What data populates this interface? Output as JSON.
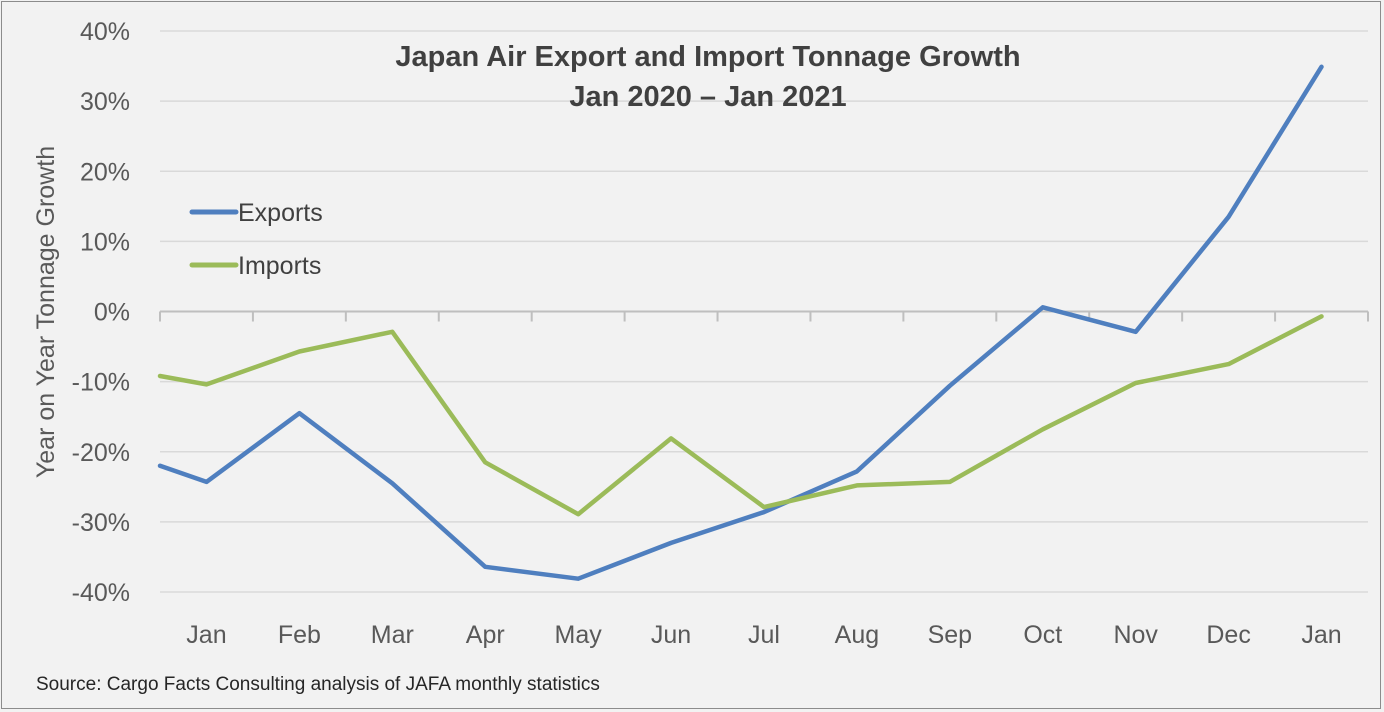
{
  "chart_data": {
    "type": "line",
    "title": "Japan Air Export and Import Tonnage Growth",
    "subtitle": "Jan 2020 – Jan 2021",
    "ylabel": "Year on Year Tonnage Growth",
    "xlabel": "",
    "ylim": [
      -40,
      40
    ],
    "yticks": [
      40,
      30,
      20,
      10,
      0,
      -10,
      -20,
      -30,
      -40
    ],
    "ytick_labels": [
      "40%",
      "30%",
      "20%",
      "10%",
      "0%",
      "-10%",
      "-20%",
      "-30%",
      "-40%"
    ],
    "categories": [
      "Jan",
      "Feb",
      "Mar",
      "Apr",
      "May",
      "Jun",
      "Jul",
      "Aug",
      "Sep",
      "Oct",
      "Nov",
      "Dec",
      "Jan"
    ],
    "grid": "horizontal",
    "legend_position": "upper-left",
    "series": [
      {
        "name": "Exports",
        "color": "#4f7fbf",
        "points": [
          {
            "x": 0.0,
            "y": -22.0
          },
          {
            "x": 0.5,
            "y": -24.3
          },
          {
            "x": 1.5,
            "y": -14.5
          },
          {
            "x": 2.5,
            "y": -24.5
          },
          {
            "x": 3.5,
            "y": -36.4
          },
          {
            "x": 4.5,
            "y": -38.1
          },
          {
            "x": 5.5,
            "y": -33.0
          },
          {
            "x": 6.5,
            "y": -28.6
          },
          {
            "x": 7.5,
            "y": -22.8
          },
          {
            "x": 8.5,
            "y": -10.6
          },
          {
            "x": 9.5,
            "y": 0.6
          },
          {
            "x": 10.5,
            "y": -2.9
          },
          {
            "x": 11.5,
            "y": 13.5
          },
          {
            "x": 12.5,
            "y": 34.9
          }
        ]
      },
      {
        "name": "Imports",
        "color": "#9bbb59",
        "points": [
          {
            "x": 0.0,
            "y": -9.2
          },
          {
            "x": 0.5,
            "y": -10.4
          },
          {
            "x": 1.5,
            "y": -5.7
          },
          {
            "x": 2.5,
            "y": -2.9
          },
          {
            "x": 3.5,
            "y": -21.5
          },
          {
            "x": 4.5,
            "y": -28.9
          },
          {
            "x": 5.5,
            "y": -18.1
          },
          {
            "x": 6.5,
            "y": -27.9
          },
          {
            "x": 7.5,
            "y": -24.8
          },
          {
            "x": 8.5,
            "y": -24.3
          },
          {
            "x": 9.5,
            "y": -16.8
          },
          {
            "x": 10.5,
            "y": -10.2
          },
          {
            "x": 11.5,
            "y": -7.5
          },
          {
            "x": 12.5,
            "y": -0.7
          }
        ]
      }
    ]
  },
  "source": "Source: Cargo Facts Consulting analysis of JAFA monthly statistics"
}
